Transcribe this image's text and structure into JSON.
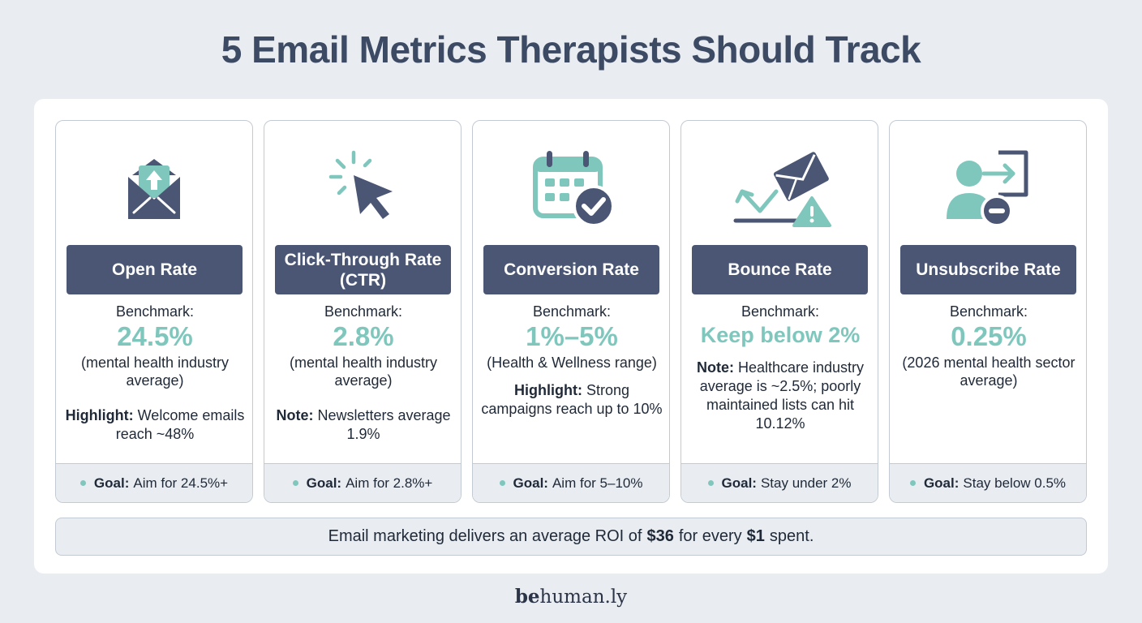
{
  "title": "5 Email Metrics Therapists Should Track",
  "cards": [
    {
      "icon": "open-envelope-icon",
      "label": "Open Rate",
      "benchmark_label": "Benchmark:",
      "benchmark_value": "24.5%",
      "benchmark_note": "(mental health industry average)",
      "extra_key": "Highlight:",
      "extra_text": "Welcome emails reach ~48%",
      "goal_key": "Goal:",
      "goal_text": "Aim for 24.5%+"
    },
    {
      "icon": "cursor-click-icon",
      "label": "Click-Through Rate (CTR)",
      "benchmark_label": "Benchmark:",
      "benchmark_value": "2.8%",
      "benchmark_note": "(mental health industry average)",
      "extra_key": "Note:",
      "extra_text": "Newsletters average 1.9%",
      "goal_key": "Goal:",
      "goal_text": "Aim for 2.8%+"
    },
    {
      "icon": "calendar-check-icon",
      "label": "Conversion Rate",
      "benchmark_label": "Benchmark:",
      "benchmark_value": "1%–5%",
      "benchmark_note": "(Health & Wellness range)",
      "extra_key": "Highlight:",
      "extra_text": "Strong campaigns reach up to 10%",
      "goal_key": "Goal:",
      "goal_text": "Aim for 5–10%"
    },
    {
      "icon": "bounce-envelope-warning-icon",
      "label": "Bounce Rate",
      "benchmark_label": "Benchmark:",
      "benchmark_value": "Keep below 2%",
      "benchmark_note": "",
      "extra_key": "Note:",
      "extra_text": "Healthcare industry average is ~2.5%; poorly maintained lists can hit 10.12%",
      "goal_key": "Goal:",
      "goal_text": "Stay under 2%"
    },
    {
      "icon": "user-unsubscribe-icon",
      "label": "Unsubscribe Rate",
      "benchmark_label": "Benchmark:",
      "benchmark_value": "0.25%",
      "benchmark_note": "(2026 mental health sector average)",
      "extra_key": "",
      "extra_text": "",
      "goal_key": "Goal:",
      "goal_text": "Stay below 0.5%"
    }
  ],
  "roi": {
    "prefix": "Email marketing delivers an average ROI of",
    "amount": "$36",
    "middle": "for every",
    "unit": "$1",
    "suffix": "spent."
  },
  "brand": {
    "bold": "be",
    "rest": "human.ly"
  },
  "colors": {
    "background": "#e9edf2",
    "navy": "#4a5674",
    "teal": "#7fc7bd",
    "title": "#3d4a63"
  }
}
